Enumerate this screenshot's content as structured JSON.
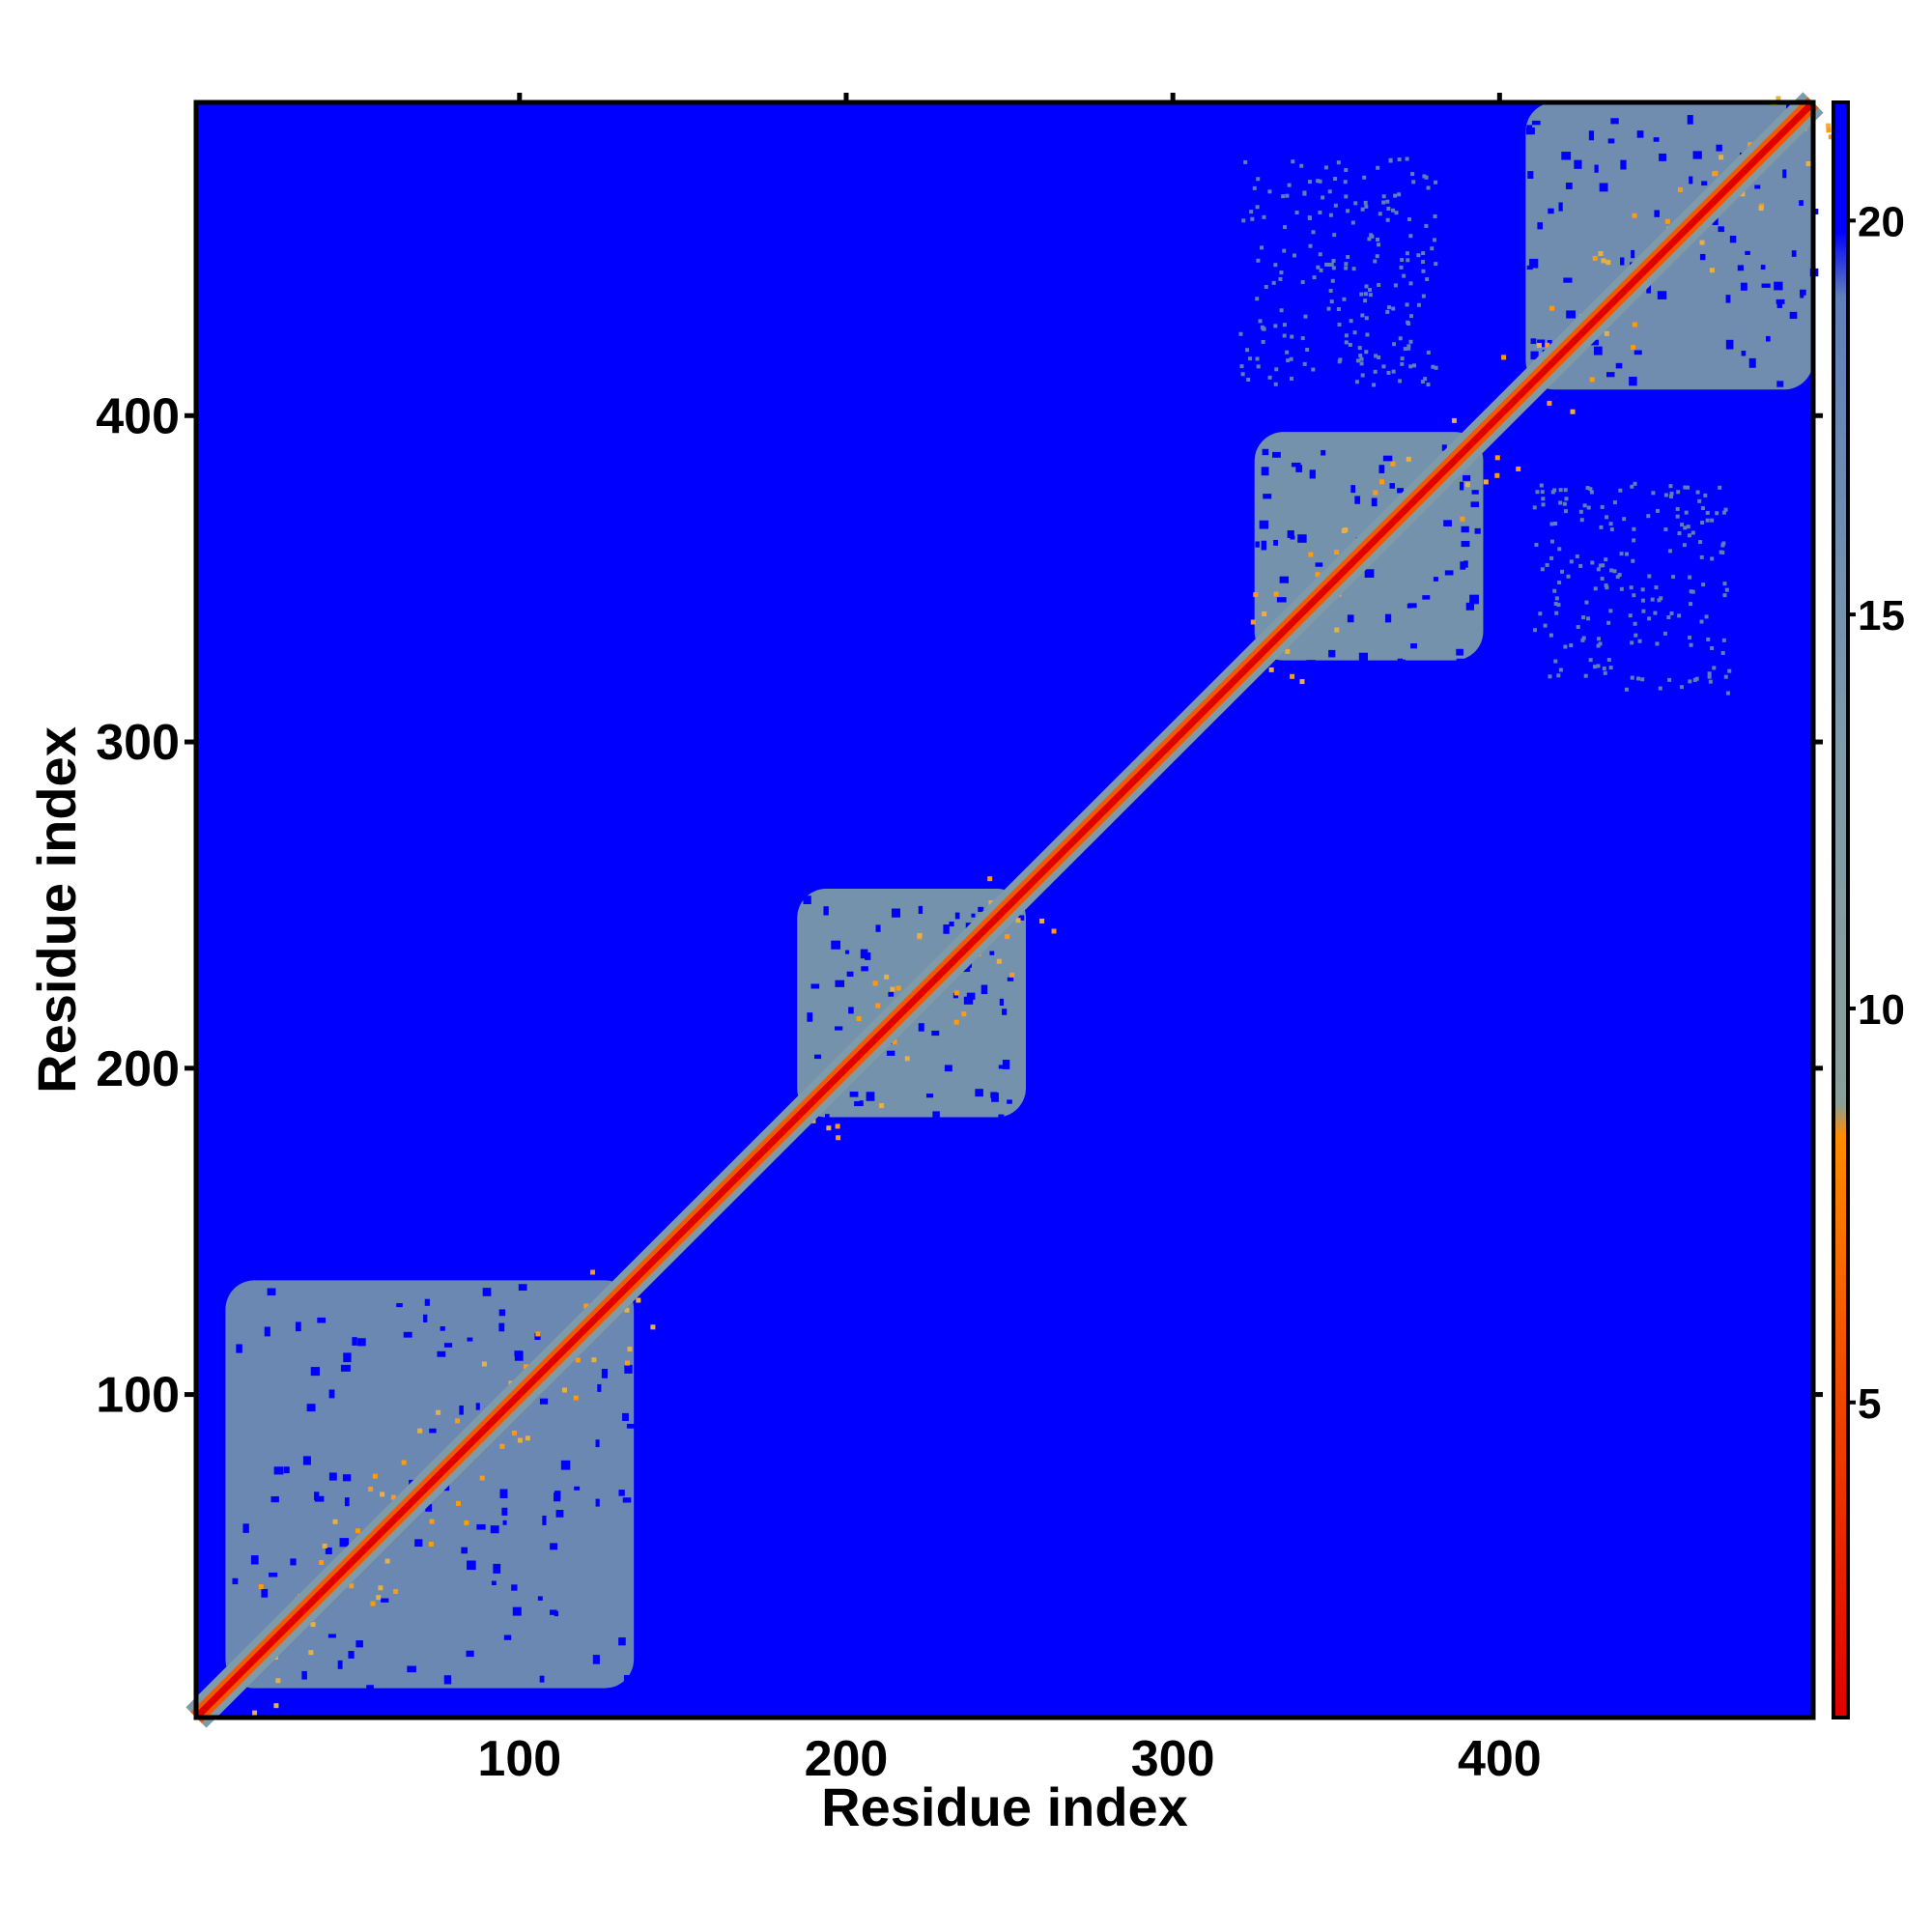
{
  "chart_data": {
    "type": "heatmap",
    "title": "",
    "xlabel": "Residue index",
    "ylabel": "Residue index",
    "xlim": [
      1,
      496
    ],
    "ylim": [
      1,
      496
    ],
    "x_ticks": [
      100,
      200,
      300,
      400
    ],
    "y_ticks": [
      100,
      200,
      300,
      400
    ],
    "tick_labels": {
      "x": [
        "100",
        "200",
        "300",
        "400"
      ],
      "y": [
        "100",
        "200",
        "300",
        "400"
      ]
    },
    "colorbar": {
      "range": [
        1,
        21.5
      ],
      "ticks": [
        5,
        10,
        15,
        20
      ],
      "tick_labels": [
        "5",
        "10",
        "15",
        "20"
      ],
      "colors": [
        "#e00000",
        "#ff8c00",
        "#7f9aa8",
        "#0000ff"
      ]
    },
    "background_value": 21.5,
    "diagonal_value": 1,
    "domains": [
      {
        "range": [
          10,
          135
        ],
        "mean_value": 17
      },
      {
        "range": [
          185,
          255
        ],
        "mean_value": 15
      },
      {
        "range": [
          325,
          395
        ],
        "mean_value": 15
      },
      {
        "range": [
          408,
          496
        ],
        "mean_value": 16
      }
    ],
    "off_diagonal_contacts": [
      {
        "x": [
          320,
          380
        ],
        "y": [
          410,
          480
        ],
        "mean_value": 19
      },
      {
        "x": [
          410,
          470
        ],
        "y": [
          315,
          380
        ],
        "mean_value": 19
      },
      {
        "x": [
          25,
          40
        ],
        "y": [
          205,
          245
        ],
        "mean_value": 20
      },
      {
        "x": [
          205,
          245
        ],
        "y": [
          25,
          40
        ],
        "mean_value": 20
      }
    ],
    "grid": false,
    "legend": "colorbar-right"
  }
}
